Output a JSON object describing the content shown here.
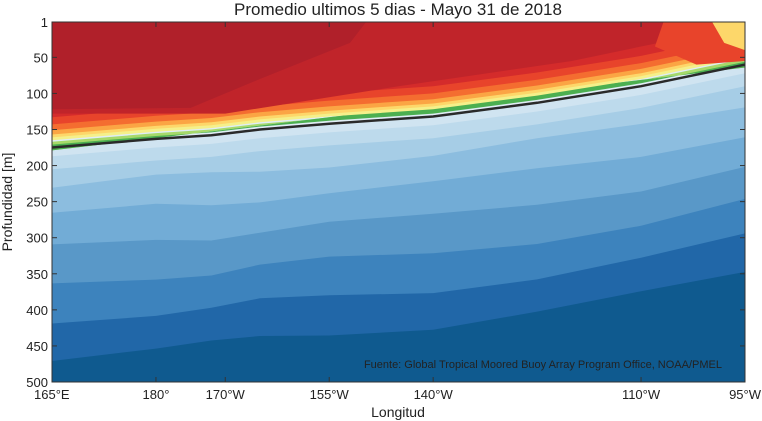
{
  "chart_data": {
    "type": "heatmap",
    "title": "Promedio ultimos 5 dias - Mayo 31 de 2018",
    "xlabel": "Longitud",
    "ylabel": "Profundidad [m]",
    "x_ticks": [
      {
        "lon": 165,
        "label": "165°E"
      },
      {
        "lon": 180,
        "label": "180°"
      },
      {
        "lon": 190,
        "label": "170°W"
      },
      {
        "lon": 205,
        "label": "155°W"
      },
      {
        "lon": 220,
        "label": "140°W"
      },
      {
        "lon": 250,
        "label": "110°W"
      },
      {
        "lon": 265,
        "label": "95°W"
      }
    ],
    "y_ticks": [
      1,
      50,
      100,
      150,
      200,
      250,
      300,
      350,
      400,
      450,
      500
    ],
    "xlim": [
      165,
      265
    ],
    "ylim": [
      1,
      500
    ],
    "grid": false,
    "annotation": "Fuente: Global Tropical Moored Buoy Array Program Office, NOAA/PMEL",
    "thermocline_line": {
      "color": "#2a2a2a",
      "lon": [
        165,
        180,
        188,
        195,
        205,
        220,
        235,
        250,
        265
      ],
      "depth": [
        175,
        163,
        158,
        150,
        142,
        132,
        113,
        90,
        60
      ]
    },
    "colors": {
      "warm": [
        "#b0202a",
        "#c0242a",
        "#d42b2b",
        "#e8442b",
        "#f46d30",
        "#fba544",
        "#fdd76a",
        "#f5f08a"
      ],
      "transition": [
        "#a6d96a",
        "#4caf50"
      ],
      "cool": [
        "#0f5a8f",
        "#2167a8",
        "#3d83bd",
        "#5998c8",
        "#72acd6",
        "#8cbddf",
        "#a6cde6",
        "#bddaec",
        "#d0e4f1",
        "#e0edf6"
      ]
    }
  }
}
